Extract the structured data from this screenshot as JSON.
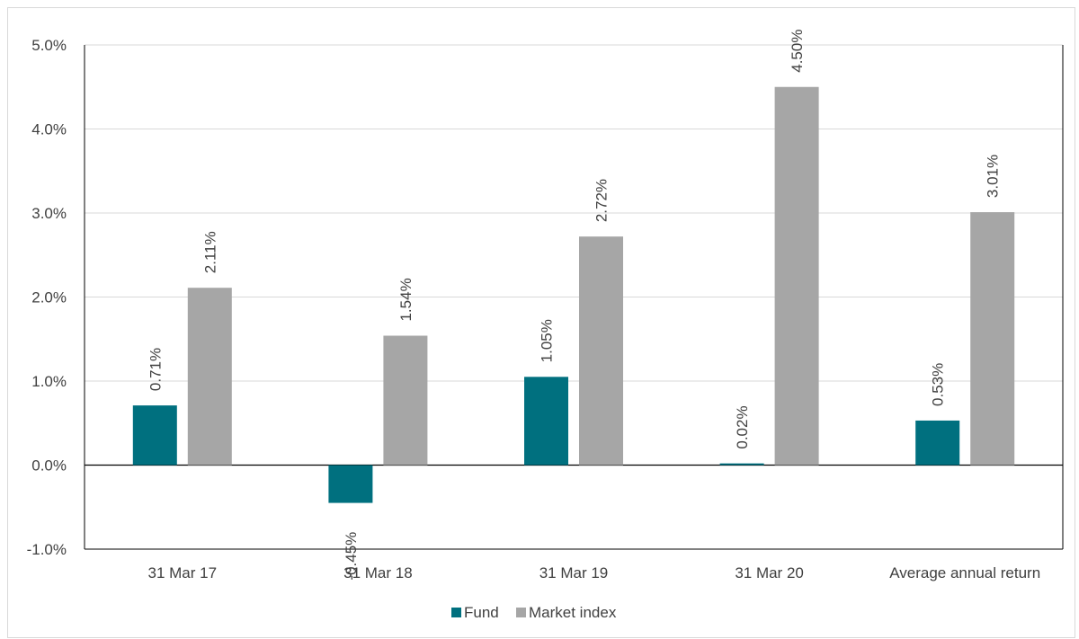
{
  "chart_data": {
    "type": "bar",
    "categories": [
      "31 Mar 17",
      "31 Mar 18",
      "31 Mar 19",
      "31 Mar 20",
      "Average annual return"
    ],
    "series": [
      {
        "name": "Fund",
        "color": "#00707f",
        "values": [
          0.71,
          -0.45,
          1.05,
          0.02,
          0.53
        ],
        "labels": [
          "0.71%",
          "-0.45%",
          "1.05%",
          "0.02%",
          "0.53%"
        ]
      },
      {
        "name": "Market index",
        "color": "#a6a6a6",
        "values": [
          2.11,
          1.54,
          2.72,
          4.5,
          3.01
        ],
        "labels": [
          "2.11%",
          "1.54%",
          "2.72%",
          "4.50%",
          "3.01%"
        ]
      }
    ],
    "ylim": [
      -1.0,
      5.0
    ],
    "yticks": [
      "-1.0%",
      "0.0%",
      "1.0%",
      "2.0%",
      "3.0%",
      "4.0%",
      "5.0%"
    ],
    "ytick_values": [
      -1,
      0,
      1,
      2,
      3,
      4,
      5
    ],
    "grid": true,
    "legend_position": "bottom",
    "title": "",
    "xlabel": "",
    "ylabel": ""
  }
}
